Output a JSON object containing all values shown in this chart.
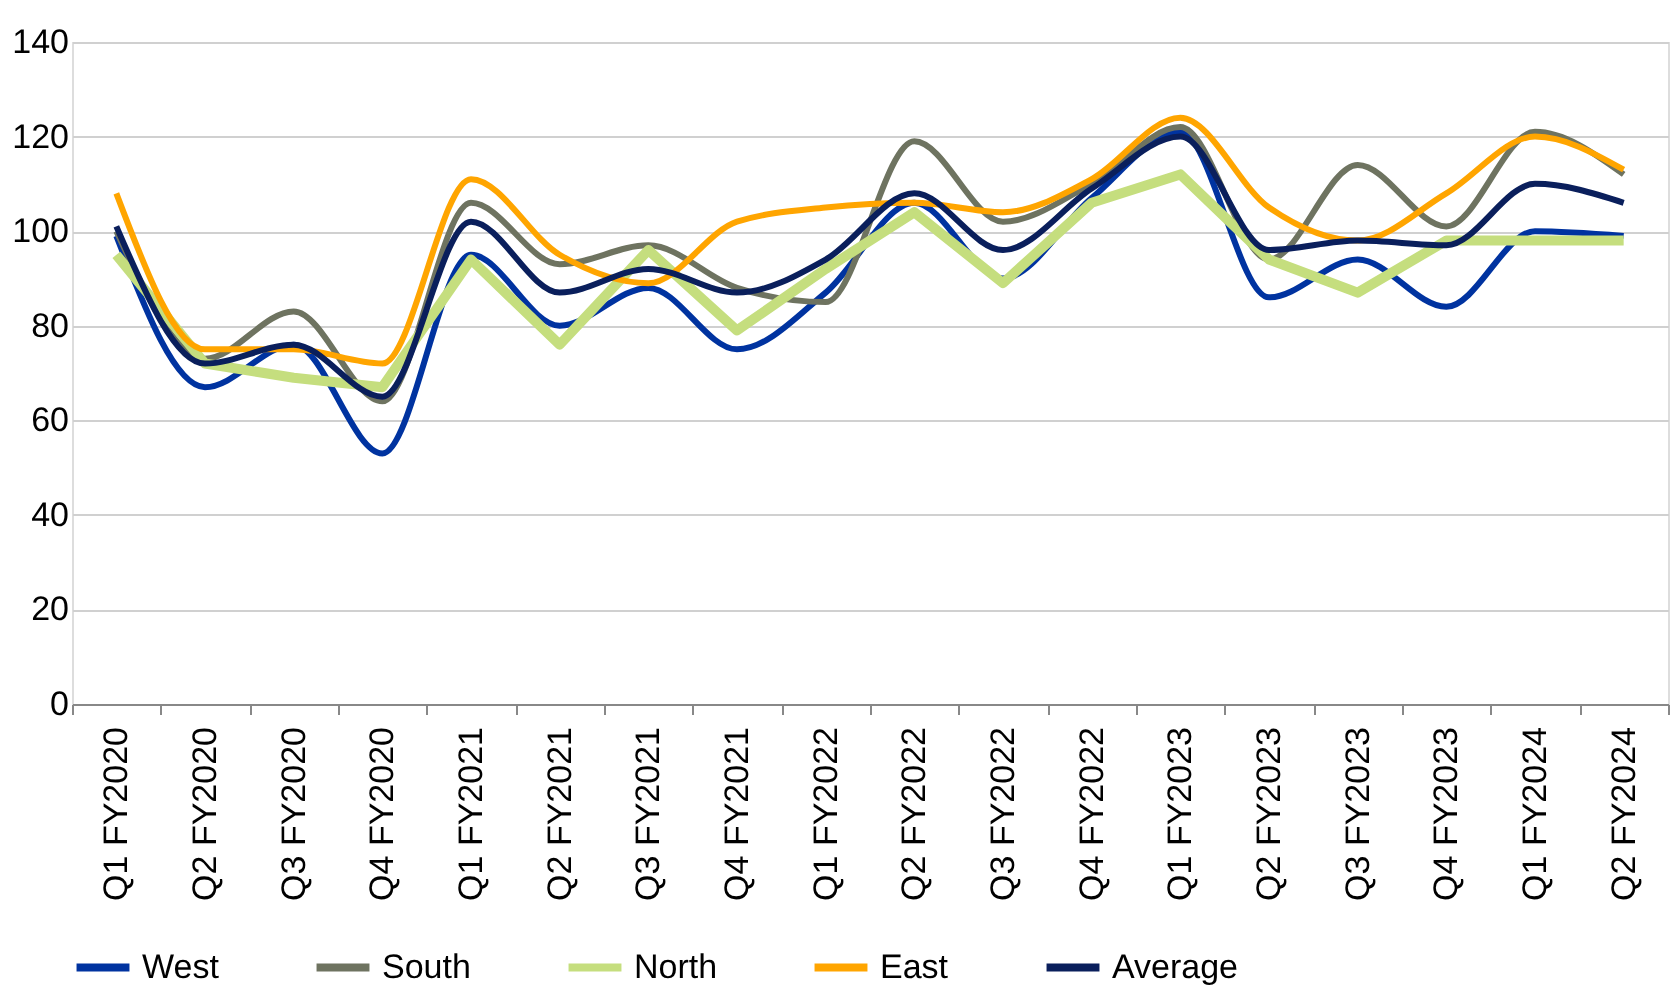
{
  "chart_data": {
    "type": "line",
    "categories": [
      "Q1 FY2020",
      "Q2 FY2020",
      "Q3 FY2020",
      "Q4 FY2020",
      "Q1 FY2021",
      "Q2 FY2021",
      "Q3 FY2021",
      "Q4 FY2021",
      "Q1 FY2022",
      "Q2 FY2022",
      "Q3 FY2022",
      "Q4 FY2022",
      "Q1 FY2023",
      "Q2 FY2023",
      "Q3 FY2023",
      "Q4 FY2023",
      "Q1 FY2024",
      "Q2 FY2024"
    ],
    "series": [
      {
        "name": "West",
        "color": "#0033a0",
        "values": [
          99,
          67,
          76,
          53,
          95,
          80,
          88,
          75,
          87,
          106,
          90,
          107,
          121,
          86,
          94,
          84,
          100,
          99
        ]
      },
      {
        "name": "South",
        "color": "#6e7360",
        "values": [
          100,
          73,
          83,
          64,
          106,
          93,
          97,
          88,
          85,
          119,
          102,
          110,
          122,
          94,
          114,
          101,
          121,
          112
        ]
      },
      {
        "name": "North",
        "color": "#c5de7e",
        "values": [
          95,
          72,
          69,
          67,
          94,
          76,
          96,
          79,
          92,
          104,
          89,
          106,
          112,
          94,
          87,
          98,
          98,
          98
        ]
      },
      {
        "name": "East",
        "color": "#ffa500",
        "values": [
          108,
          75,
          75,
          72,
          111,
          95,
          89,
          102,
          105,
          106,
          104,
          111,
          124,
          105,
          98,
          108,
          120,
          113
        ]
      },
      {
        "name": "Average",
        "color": "#0a1f5c",
        "values": [
          101,
          72,
          76,
          65,
          102,
          87,
          92,
          87,
          94,
          108,
          96,
          109,
          120,
          96,
          98,
          97,
          110,
          106
        ]
      }
    ],
    "ylim": [
      0,
      140
    ],
    "yticks": [
      0,
      20,
      40,
      60,
      80,
      100,
      120,
      140
    ],
    "grid": "y",
    "legend": "bottom",
    "marker": "none",
    "line_style": "solid"
  }
}
